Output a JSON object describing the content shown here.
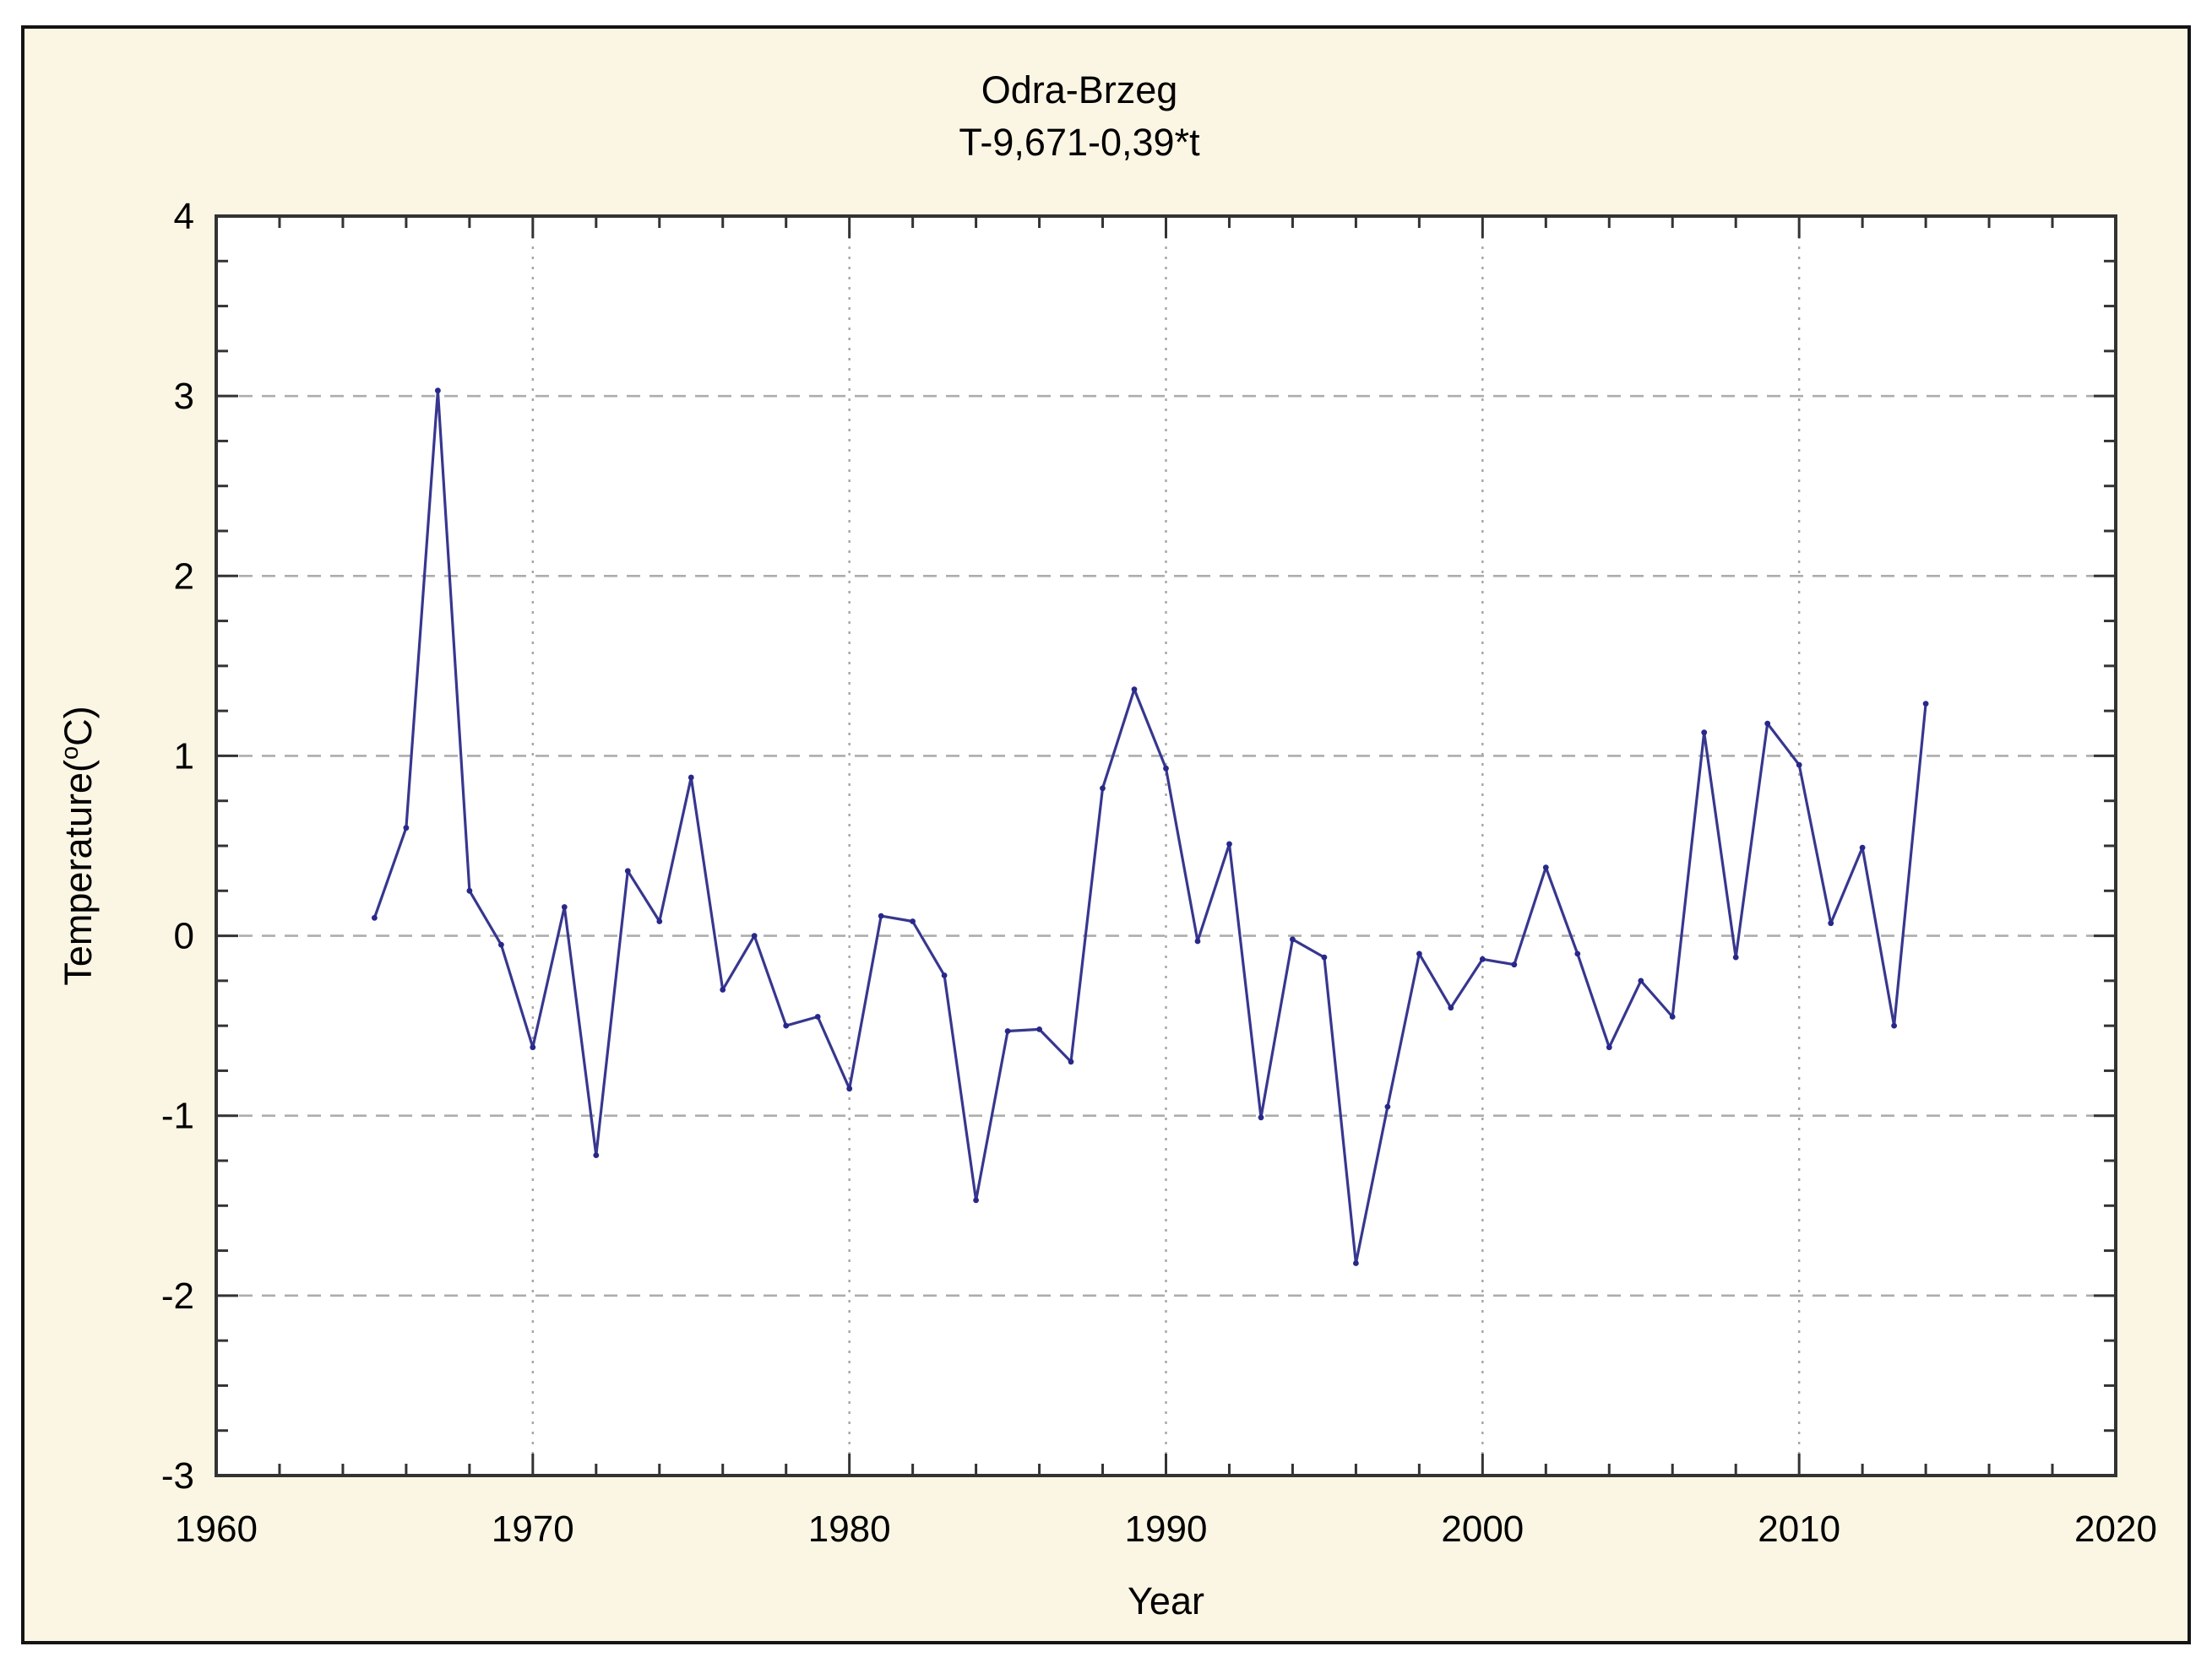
{
  "frame": {
    "background": "#FBF6E4",
    "border_color": "#141414"
  },
  "chart_data": {
    "type": "line",
    "title": "Odra-Brzeg",
    "subtitle": "T-9,671-0,39*t",
    "xlabel": "Year",
    "ylabel": "Temperature(oC)",
    "ylabel_parts": {
      "pre": "Temperature(",
      "sup": "o",
      "post": "C)"
    },
    "xlim": [
      1960,
      2020
    ],
    "ylim": [
      -3,
      4
    ],
    "x_major_ticks": [
      1960,
      1970,
      1980,
      1990,
      2000,
      2010,
      2020
    ],
    "x_tick_labels": [
      "1960",
      "1970",
      "1980",
      "1990",
      "2000",
      "2010",
      "2020"
    ],
    "x_minor_step": 2,
    "y_major_ticks": [
      -3,
      -2,
      -1,
      0,
      1,
      2,
      3,
      4
    ],
    "y_tick_labels": [
      "-3",
      "-2",
      "-1",
      "0",
      "1",
      "2",
      "3",
      "4"
    ],
    "y_minor_step": 0.25,
    "grid_x": [
      1970,
      1980,
      1990,
      2000,
      2010
    ],
    "grid_y": [
      -2,
      -1,
      0,
      1,
      2,
      3
    ],
    "grid_on": true,
    "legend_position": "none",
    "series": [
      {
        "name": "Temperature",
        "x": [
          1965,
          1966,
          1967,
          1968,
          1969,
          1970,
          1971,
          1972,
          1973,
          1974,
          1975,
          1976,
          1977,
          1978,
          1979,
          1980,
          1981,
          1982,
          1983,
          1984,
          1985,
          1986,
          1987,
          1988,
          1989,
          1990,
          1991,
          1992,
          1993,
          1994,
          1995,
          1996,
          1997,
          1998,
          1999,
          2000,
          2001,
          2002,
          2003,
          2004,
          2005,
          2006,
          2007,
          2008,
          2009,
          2010,
          2011,
          2012,
          2013,
          2014
        ],
        "y": [
          0.1,
          0.6,
          3.03,
          0.25,
          -0.05,
          -0.62,
          0.16,
          -1.22,
          0.36,
          0.08,
          0.88,
          -0.3,
          0.0,
          -0.5,
          -0.45,
          -0.85,
          0.11,
          0.08,
          -0.22,
          -1.47,
          -0.53,
          -0.52,
          -0.7,
          0.82,
          1.37,
          0.93,
          -0.03,
          0.51,
          -1.01,
          -0.02,
          -0.12,
          -1.82,
          -0.95,
          -0.1,
          -0.4,
          -0.13,
          -0.16,
          0.38,
          -0.1,
          -0.62,
          -0.25,
          -0.45,
          1.13,
          -0.12,
          1.18,
          0.95,
          0.07,
          0.49,
          -0.5,
          1.29
        ]
      }
    ],
    "colors": {
      "line": "#37378F",
      "marker": "#28288A",
      "grid": "#ADADAD",
      "axis": "#333333",
      "plot_background": "#FFFFFF",
      "text": "#000000"
    }
  }
}
